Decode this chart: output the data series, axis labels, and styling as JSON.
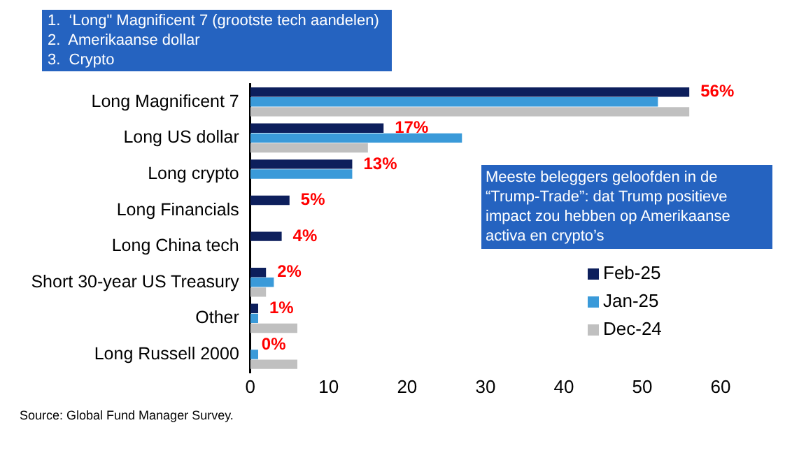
{
  "chart_data": {
    "type": "bar",
    "orientation": "horizontal",
    "title": "1.  ‘Long\" Magnificent 7 (grootste tech aandelen)\n2.  Amerikaanse dollar\n3.  Crypto",
    "categories": [
      "Long Magnificent 7",
      "Long US dollar",
      "Long crypto",
      "Long Financials",
      "Long China tech",
      "Short 30-year US Treasury",
      "Other",
      "Long Russell 2000"
    ],
    "series": [
      {
        "name": "Feb-25",
        "color": "#0d1f5c",
        "values": [
          56,
          17,
          13,
          5,
          4,
          2,
          1,
          0
        ],
        "value_labels": [
          "56%",
          "17%",
          "13%",
          "5%",
          "4%",
          "2%",
          "1%",
          "0%"
        ]
      },
      {
        "name": "Jan-25",
        "color": "#3a9ad9",
        "values": [
          52,
          27,
          13,
          null,
          null,
          3,
          1,
          1
        ]
      },
      {
        "name": "Dec-24",
        "color": "#c0c0c0",
        "values": [
          56,
          15,
          null,
          null,
          null,
          2,
          6,
          6
        ]
      }
    ],
    "xlim": [
      0,
      60
    ],
    "xticks": [
      0,
      10,
      20,
      30,
      40,
      50,
      60
    ],
    "grid": false,
    "legend": "right",
    "annotations": [
      "Meeste beleggers geloofden in de “Trump-Trade”: dat Trump positieve impact zou hebben op Amerikaanse activa en crypto’s",
      "Source: Global Fund Manager Survey."
    ]
  }
}
